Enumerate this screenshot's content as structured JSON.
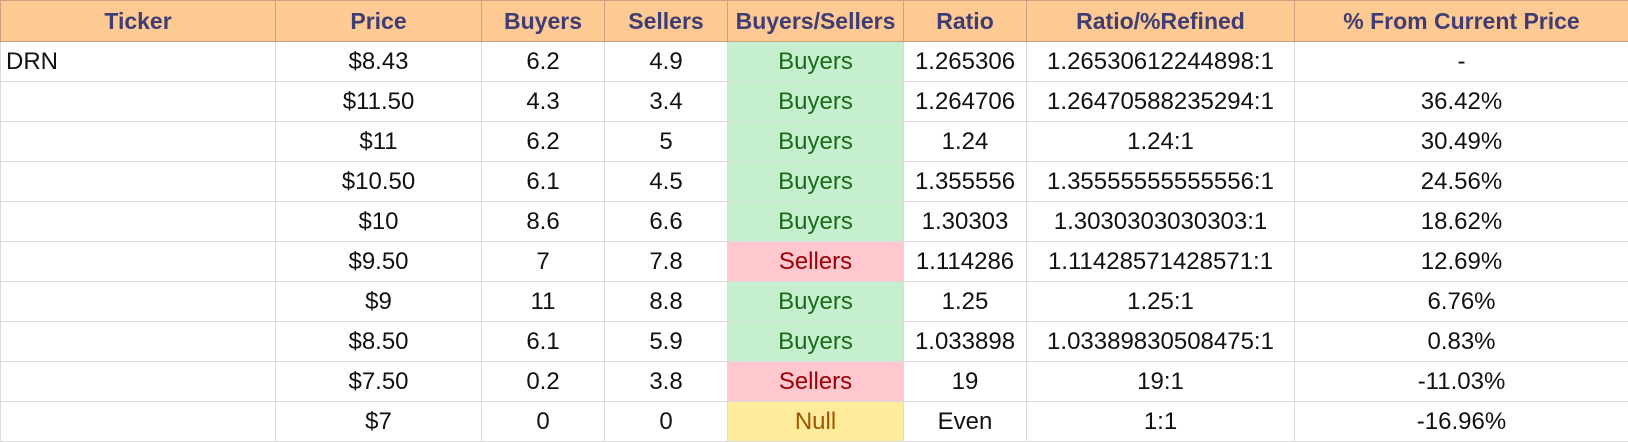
{
  "columns": [
    "Ticker",
    "Price",
    "Buyers",
    "Sellers",
    "Buyers/Sellers",
    "Ratio",
    "Ratio/%Refined",
    "% From Current Price"
  ],
  "rows": [
    {
      "ticker": "DRN",
      "price": "$8.43",
      "buyers": "6.2",
      "sellers": "4.9",
      "signal": "Buyers",
      "ratio": "1.265306",
      "refined": "1.26530612244898:1",
      "pct": "-"
    },
    {
      "ticker": "",
      "price": "$11.50",
      "buyers": "4.3",
      "sellers": "3.4",
      "signal": "Buyers",
      "ratio": "1.264706",
      "refined": "1.26470588235294:1",
      "pct": "36.42%"
    },
    {
      "ticker": "",
      "price": "$11",
      "buyers": "6.2",
      "sellers": "5",
      "signal": "Buyers",
      "ratio": "1.24",
      "refined": "1.24:1",
      "pct": "30.49%"
    },
    {
      "ticker": "",
      "price": "$10.50",
      "buyers": "6.1",
      "sellers": "4.5",
      "signal": "Buyers",
      "ratio": "1.355556",
      "refined": "1.35555555555556:1",
      "pct": "24.56%"
    },
    {
      "ticker": "",
      "price": "$10",
      "buyers": "8.6",
      "sellers": "6.6",
      "signal": "Buyers",
      "ratio": "1.30303",
      "refined": "1.3030303030303:1",
      "pct": "18.62%"
    },
    {
      "ticker": "",
      "price": "$9.50",
      "buyers": "7",
      "sellers": "7.8",
      "signal": "Sellers",
      "ratio": "1.114286",
      "refined": "1.11428571428571:1",
      "pct": "12.69%"
    },
    {
      "ticker": "",
      "price": "$9",
      "buyers": "11",
      "sellers": "8.8",
      "signal": "Buyers",
      "ratio": "1.25",
      "refined": "1.25:1",
      "pct": "6.76%"
    },
    {
      "ticker": "",
      "price": "$8.50",
      "buyers": "6.1",
      "sellers": "5.9",
      "signal": "Buyers",
      "ratio": "1.033898",
      "refined": "1.03389830508475:1",
      "pct": "0.83%"
    },
    {
      "ticker": "",
      "price": "$7.50",
      "buyers": "0.2",
      "sellers": "3.8",
      "signal": "Sellers",
      "ratio": "19",
      "refined": "19:1",
      "pct": "-11.03%"
    },
    {
      "ticker": "",
      "price": "$7",
      "buyers": "0",
      "sellers": "0",
      "signal": "Null",
      "ratio": "Even",
      "refined": "1:1",
      "pct": "-16.96%"
    }
  ],
  "colors": {
    "header_bg": "#fdca93",
    "header_text": "#3f3d74",
    "buyers_bg": "#c6efce",
    "buyers_text": "#1a6a1a",
    "sellers_bg": "#ffc7ce",
    "sellers_text": "#9c0006",
    "null_bg": "#ffeb9c",
    "null_text": "#9c5700"
  }
}
